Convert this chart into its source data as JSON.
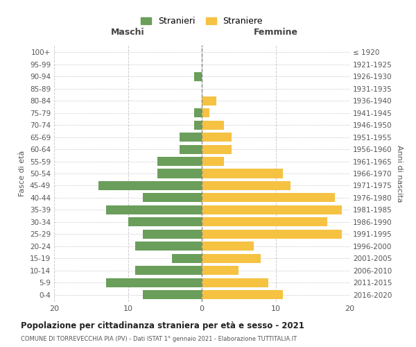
{
  "age_groups_bottom_to_top": [
    "0-4",
    "5-9",
    "10-14",
    "15-19",
    "20-24",
    "25-29",
    "30-34",
    "35-39",
    "40-44",
    "45-49",
    "50-54",
    "55-59",
    "60-64",
    "65-69",
    "70-74",
    "75-79",
    "80-84",
    "85-89",
    "90-94",
    "95-99",
    "100+"
  ],
  "birth_years_bottom_to_top": [
    "2016-2020",
    "2011-2015",
    "2006-2010",
    "2001-2005",
    "1996-2000",
    "1991-1995",
    "1986-1990",
    "1981-1985",
    "1976-1980",
    "1971-1975",
    "1966-1970",
    "1961-1965",
    "1956-1960",
    "1951-1955",
    "1946-1950",
    "1941-1945",
    "1936-1940",
    "1931-1935",
    "1926-1930",
    "1921-1925",
    "≤ 1920"
  ],
  "males_bottom_to_top": [
    8,
    13,
    9,
    4,
    9,
    8,
    10,
    13,
    8,
    14,
    6,
    6,
    3,
    3,
    1,
    1,
    0,
    0,
    1,
    0,
    0
  ],
  "females_bottom_to_top": [
    11,
    9,
    5,
    8,
    7,
    19,
    17,
    19,
    18,
    12,
    11,
    3,
    4,
    4,
    3,
    1,
    2,
    0,
    0,
    0,
    0
  ],
  "male_color": "#6a9e5a",
  "female_color": "#f5c242",
  "background_color": "#ffffff",
  "grid_color": "#cccccc",
  "title": "Popolazione per cittadinanza straniera per età e sesso - 2021",
  "subtitle": "COMUNE DI TORREVECCHIA PIA (PV) - Dati ISTAT 1° gennaio 2021 - Elaborazione TUTTITALIA.IT",
  "xlabel_left": "Maschi",
  "xlabel_right": "Femmine",
  "ylabel_left": "Fasce di età",
  "ylabel_right": "Anni di nascita",
  "legend_males": "Stranieri",
  "legend_females": "Straniere",
  "xlim": 20
}
